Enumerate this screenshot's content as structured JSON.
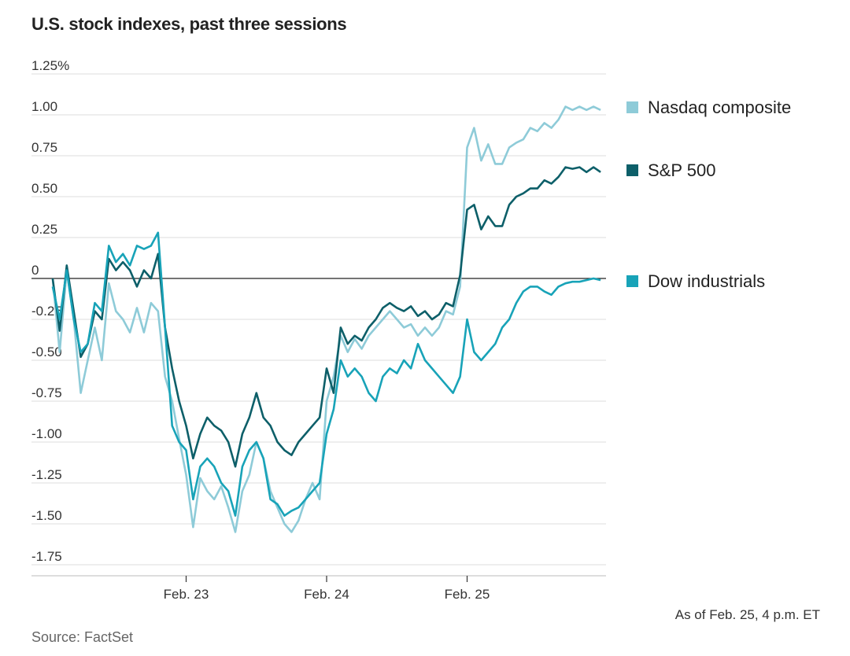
{
  "chart_data": {
    "type": "line",
    "title": "U.S. stock indexes, past three sessions",
    "note": "As of Feb. 25, 4 p.m. ET",
    "source": "Source: FactSet",
    "x_labels": [
      "Feb. 23",
      "Feb. 24",
      "Feb. 25"
    ],
    "x_label_positions": [
      1,
      2,
      3
    ],
    "xlim": [
      0,
      3.95
    ],
    "ylim": [
      -1.8,
      1.32
    ],
    "y_ticks": [
      {
        "value": 1.25,
        "label": "1.25%"
      },
      {
        "value": 1.0,
        "label": "1.00"
      },
      {
        "value": 0.75,
        "label": "0.75"
      },
      {
        "value": 0.5,
        "label": "0.50"
      },
      {
        "value": 0.25,
        "label": "0.25"
      },
      {
        "value": 0,
        "label": "0"
      },
      {
        "value": -0.25,
        "label": "-0.25"
      },
      {
        "value": -0.5,
        "label": "-0.50"
      },
      {
        "value": -0.75,
        "label": "-0.75"
      },
      {
        "value": -1.0,
        "label": "-1.00"
      },
      {
        "value": -1.25,
        "label": "-1.25"
      },
      {
        "value": -1.5,
        "label": "-1.50"
      },
      {
        "value": -1.75,
        "label": "-1.75"
      }
    ],
    "grid": true,
    "legend_position": "right",
    "series": [
      {
        "name": "Nasdaq composite",
        "color": "#8ecbd8",
        "legend_y": 1.04,
        "points": [
          [
            0.05,
            0
          ],
          [
            0.1,
            -0.45
          ],
          [
            0.15,
            0.05
          ],
          [
            0.2,
            -0.25
          ],
          [
            0.25,
            -0.7
          ],
          [
            0.3,
            -0.5
          ],
          [
            0.35,
            -0.3
          ],
          [
            0.4,
            -0.5
          ],
          [
            0.45,
            -0.03
          ],
          [
            0.5,
            -0.2
          ],
          [
            0.55,
            -0.25
          ],
          [
            0.6,
            -0.33
          ],
          [
            0.65,
            -0.18
          ],
          [
            0.7,
            -0.33
          ],
          [
            0.75,
            -0.15
          ],
          [
            0.8,
            -0.2
          ],
          [
            0.85,
            -0.6
          ],
          [
            0.9,
            -0.75
          ],
          [
            0.95,
            -0.98
          ],
          [
            1.0,
            -1.2
          ],
          [
            1.05,
            -1.52
          ],
          [
            1.1,
            -1.22
          ],
          [
            1.15,
            -1.3
          ],
          [
            1.2,
            -1.35
          ],
          [
            1.25,
            -1.27
          ],
          [
            1.3,
            -1.4
          ],
          [
            1.35,
            -1.55
          ],
          [
            1.4,
            -1.3
          ],
          [
            1.45,
            -1.2
          ],
          [
            1.5,
            -1.0
          ],
          [
            1.55,
            -1.1
          ],
          [
            1.6,
            -1.3
          ],
          [
            1.65,
            -1.4
          ],
          [
            1.7,
            -1.5
          ],
          [
            1.75,
            -1.55
          ],
          [
            1.8,
            -1.48
          ],
          [
            1.85,
            -1.35
          ],
          [
            1.9,
            -1.25
          ],
          [
            1.95,
            -1.35
          ],
          [
            2.0,
            -0.75
          ],
          [
            2.05,
            -0.6
          ],
          [
            2.1,
            -0.35
          ],
          [
            2.15,
            -0.45
          ],
          [
            2.2,
            -0.37
          ],
          [
            2.25,
            -0.43
          ],
          [
            2.3,
            -0.35
          ],
          [
            2.35,
            -0.3
          ],
          [
            2.4,
            -0.25
          ],
          [
            2.45,
            -0.2
          ],
          [
            2.5,
            -0.25
          ],
          [
            2.55,
            -0.3
          ],
          [
            2.6,
            -0.28
          ],
          [
            2.65,
            -0.35
          ],
          [
            2.7,
            -0.3
          ],
          [
            2.75,
            -0.35
          ],
          [
            2.8,
            -0.3
          ],
          [
            2.85,
            -0.2
          ],
          [
            2.9,
            -0.22
          ],
          [
            2.95,
            -0.05
          ],
          [
            3.0,
            0.8
          ],
          [
            3.05,
            0.92
          ],
          [
            3.1,
            0.72
          ],
          [
            3.15,
            0.82
          ],
          [
            3.2,
            0.7
          ],
          [
            3.25,
            0.7
          ],
          [
            3.3,
            0.8
          ],
          [
            3.35,
            0.83
          ],
          [
            3.4,
            0.85
          ],
          [
            3.45,
            0.92
          ],
          [
            3.5,
            0.9
          ],
          [
            3.55,
            0.95
          ],
          [
            3.6,
            0.92
          ],
          [
            3.65,
            0.97
          ],
          [
            3.7,
            1.05
          ],
          [
            3.75,
            1.03
          ],
          [
            3.8,
            1.05
          ],
          [
            3.85,
            1.03
          ],
          [
            3.9,
            1.05
          ],
          [
            3.95,
            1.03
          ]
        ]
      },
      {
        "name": "S&P 500",
        "color": "#0d5f69",
        "legend_y": 0.66,
        "points": [
          [
            0.05,
            0
          ],
          [
            0.1,
            -0.32
          ],
          [
            0.15,
            0.08
          ],
          [
            0.2,
            -0.2
          ],
          [
            0.25,
            -0.48
          ],
          [
            0.3,
            -0.4
          ],
          [
            0.35,
            -0.2
          ],
          [
            0.4,
            -0.25
          ],
          [
            0.45,
            0.12
          ],
          [
            0.5,
            0.05
          ],
          [
            0.55,
            0.1
          ],
          [
            0.6,
            0.05
          ],
          [
            0.65,
            -0.05
          ],
          [
            0.7,
            0.05
          ],
          [
            0.75,
            0.0
          ],
          [
            0.8,
            0.15
          ],
          [
            0.85,
            -0.3
          ],
          [
            0.9,
            -0.55
          ],
          [
            0.95,
            -0.75
          ],
          [
            1.0,
            -0.9
          ],
          [
            1.05,
            -1.1
          ],
          [
            1.1,
            -0.95
          ],
          [
            1.15,
            -0.85
          ],
          [
            1.2,
            -0.9
          ],
          [
            1.25,
            -0.93
          ],
          [
            1.3,
            -1.0
          ],
          [
            1.35,
            -1.15
          ],
          [
            1.4,
            -0.95
          ],
          [
            1.45,
            -0.85
          ],
          [
            1.5,
            -0.7
          ],
          [
            1.55,
            -0.85
          ],
          [
            1.6,
            -0.9
          ],
          [
            1.65,
            -1.0
          ],
          [
            1.7,
            -1.05
          ],
          [
            1.75,
            -1.08
          ],
          [
            1.8,
            -1.0
          ],
          [
            1.85,
            -0.95
          ],
          [
            1.9,
            -0.9
          ],
          [
            1.95,
            -0.85
          ],
          [
            2.0,
            -0.55
          ],
          [
            2.05,
            -0.7
          ],
          [
            2.1,
            -0.3
          ],
          [
            2.15,
            -0.4
          ],
          [
            2.2,
            -0.35
          ],
          [
            2.25,
            -0.38
          ],
          [
            2.3,
            -0.3
          ],
          [
            2.35,
            -0.25
          ],
          [
            2.4,
            -0.18
          ],
          [
            2.45,
            -0.15
          ],
          [
            2.5,
            -0.18
          ],
          [
            2.55,
            -0.2
          ],
          [
            2.6,
            -0.17
          ],
          [
            2.65,
            -0.23
          ],
          [
            2.7,
            -0.2
          ],
          [
            2.75,
            -0.25
          ],
          [
            2.8,
            -0.22
          ],
          [
            2.85,
            -0.15
          ],
          [
            2.9,
            -0.17
          ],
          [
            2.95,
            0.02
          ],
          [
            3.0,
            0.42
          ],
          [
            3.05,
            0.45
          ],
          [
            3.1,
            0.3
          ],
          [
            3.15,
            0.38
          ],
          [
            3.2,
            0.32
          ],
          [
            3.25,
            0.32
          ],
          [
            3.3,
            0.45
          ],
          [
            3.35,
            0.5
          ],
          [
            3.4,
            0.52
          ],
          [
            3.45,
            0.55
          ],
          [
            3.5,
            0.55
          ],
          [
            3.55,
            0.6
          ],
          [
            3.6,
            0.58
          ],
          [
            3.65,
            0.62
          ],
          [
            3.7,
            0.68
          ],
          [
            3.75,
            0.67
          ],
          [
            3.8,
            0.68
          ],
          [
            3.85,
            0.65
          ],
          [
            3.9,
            0.68
          ],
          [
            3.95,
            0.65
          ]
        ]
      },
      {
        "name": "Dow industrials",
        "color": "#18a3b8",
        "legend_y": 0.0,
        "points": [
          [
            0.05,
            -0.05
          ],
          [
            0.1,
            -0.25
          ],
          [
            0.15,
            0.05
          ],
          [
            0.2,
            -0.25
          ],
          [
            0.25,
            -0.45
          ],
          [
            0.3,
            -0.4
          ],
          [
            0.35,
            -0.15
          ],
          [
            0.4,
            -0.2
          ],
          [
            0.45,
            0.2
          ],
          [
            0.5,
            0.1
          ],
          [
            0.55,
            0.15
          ],
          [
            0.6,
            0.08
          ],
          [
            0.65,
            0.2
          ],
          [
            0.7,
            0.18
          ],
          [
            0.75,
            0.2
          ],
          [
            0.8,
            0.28
          ],
          [
            0.85,
            -0.3
          ],
          [
            0.9,
            -0.9
          ],
          [
            0.95,
            -1.0
          ],
          [
            1.0,
            -1.05
          ],
          [
            1.05,
            -1.35
          ],
          [
            1.1,
            -1.15
          ],
          [
            1.15,
            -1.1
          ],
          [
            1.2,
            -1.15
          ],
          [
            1.25,
            -1.25
          ],
          [
            1.3,
            -1.3
          ],
          [
            1.35,
            -1.45
          ],
          [
            1.4,
            -1.15
          ],
          [
            1.45,
            -1.05
          ],
          [
            1.5,
            -1.0
          ],
          [
            1.55,
            -1.1
          ],
          [
            1.6,
            -1.35
          ],
          [
            1.65,
            -1.38
          ],
          [
            1.7,
            -1.45
          ],
          [
            1.75,
            -1.42
          ],
          [
            1.8,
            -1.4
          ],
          [
            1.85,
            -1.35
          ],
          [
            1.9,
            -1.3
          ],
          [
            1.95,
            -1.25
          ],
          [
            2.0,
            -0.95
          ],
          [
            2.05,
            -0.8
          ],
          [
            2.1,
            -0.5
          ],
          [
            2.15,
            -0.6
          ],
          [
            2.2,
            -0.55
          ],
          [
            2.25,
            -0.6
          ],
          [
            2.3,
            -0.7
          ],
          [
            2.35,
            -0.75
          ],
          [
            2.4,
            -0.6
          ],
          [
            2.45,
            -0.55
          ],
          [
            2.5,
            -0.58
          ],
          [
            2.55,
            -0.5
          ],
          [
            2.6,
            -0.55
          ],
          [
            2.65,
            -0.4
          ],
          [
            2.7,
            -0.5
          ],
          [
            2.75,
            -0.55
          ],
          [
            2.8,
            -0.6
          ],
          [
            2.85,
            -0.65
          ],
          [
            2.9,
            -0.7
          ],
          [
            2.95,
            -0.6
          ],
          [
            3.0,
            -0.25
          ],
          [
            3.05,
            -0.45
          ],
          [
            3.1,
            -0.5
          ],
          [
            3.15,
            -0.45
          ],
          [
            3.2,
            -0.4
          ],
          [
            3.25,
            -0.3
          ],
          [
            3.3,
            -0.25
          ],
          [
            3.35,
            -0.15
          ],
          [
            3.4,
            -0.08
          ],
          [
            3.45,
            -0.05
          ],
          [
            3.5,
            -0.05
          ],
          [
            3.55,
            -0.08
          ],
          [
            3.6,
            -0.1
          ],
          [
            3.65,
            -0.05
          ],
          [
            3.7,
            -0.03
          ],
          [
            3.75,
            -0.02
          ],
          [
            3.8,
            -0.02
          ],
          [
            3.85,
            -0.01
          ],
          [
            3.9,
            0.0
          ],
          [
            3.95,
            -0.01
          ]
        ]
      }
    ]
  }
}
